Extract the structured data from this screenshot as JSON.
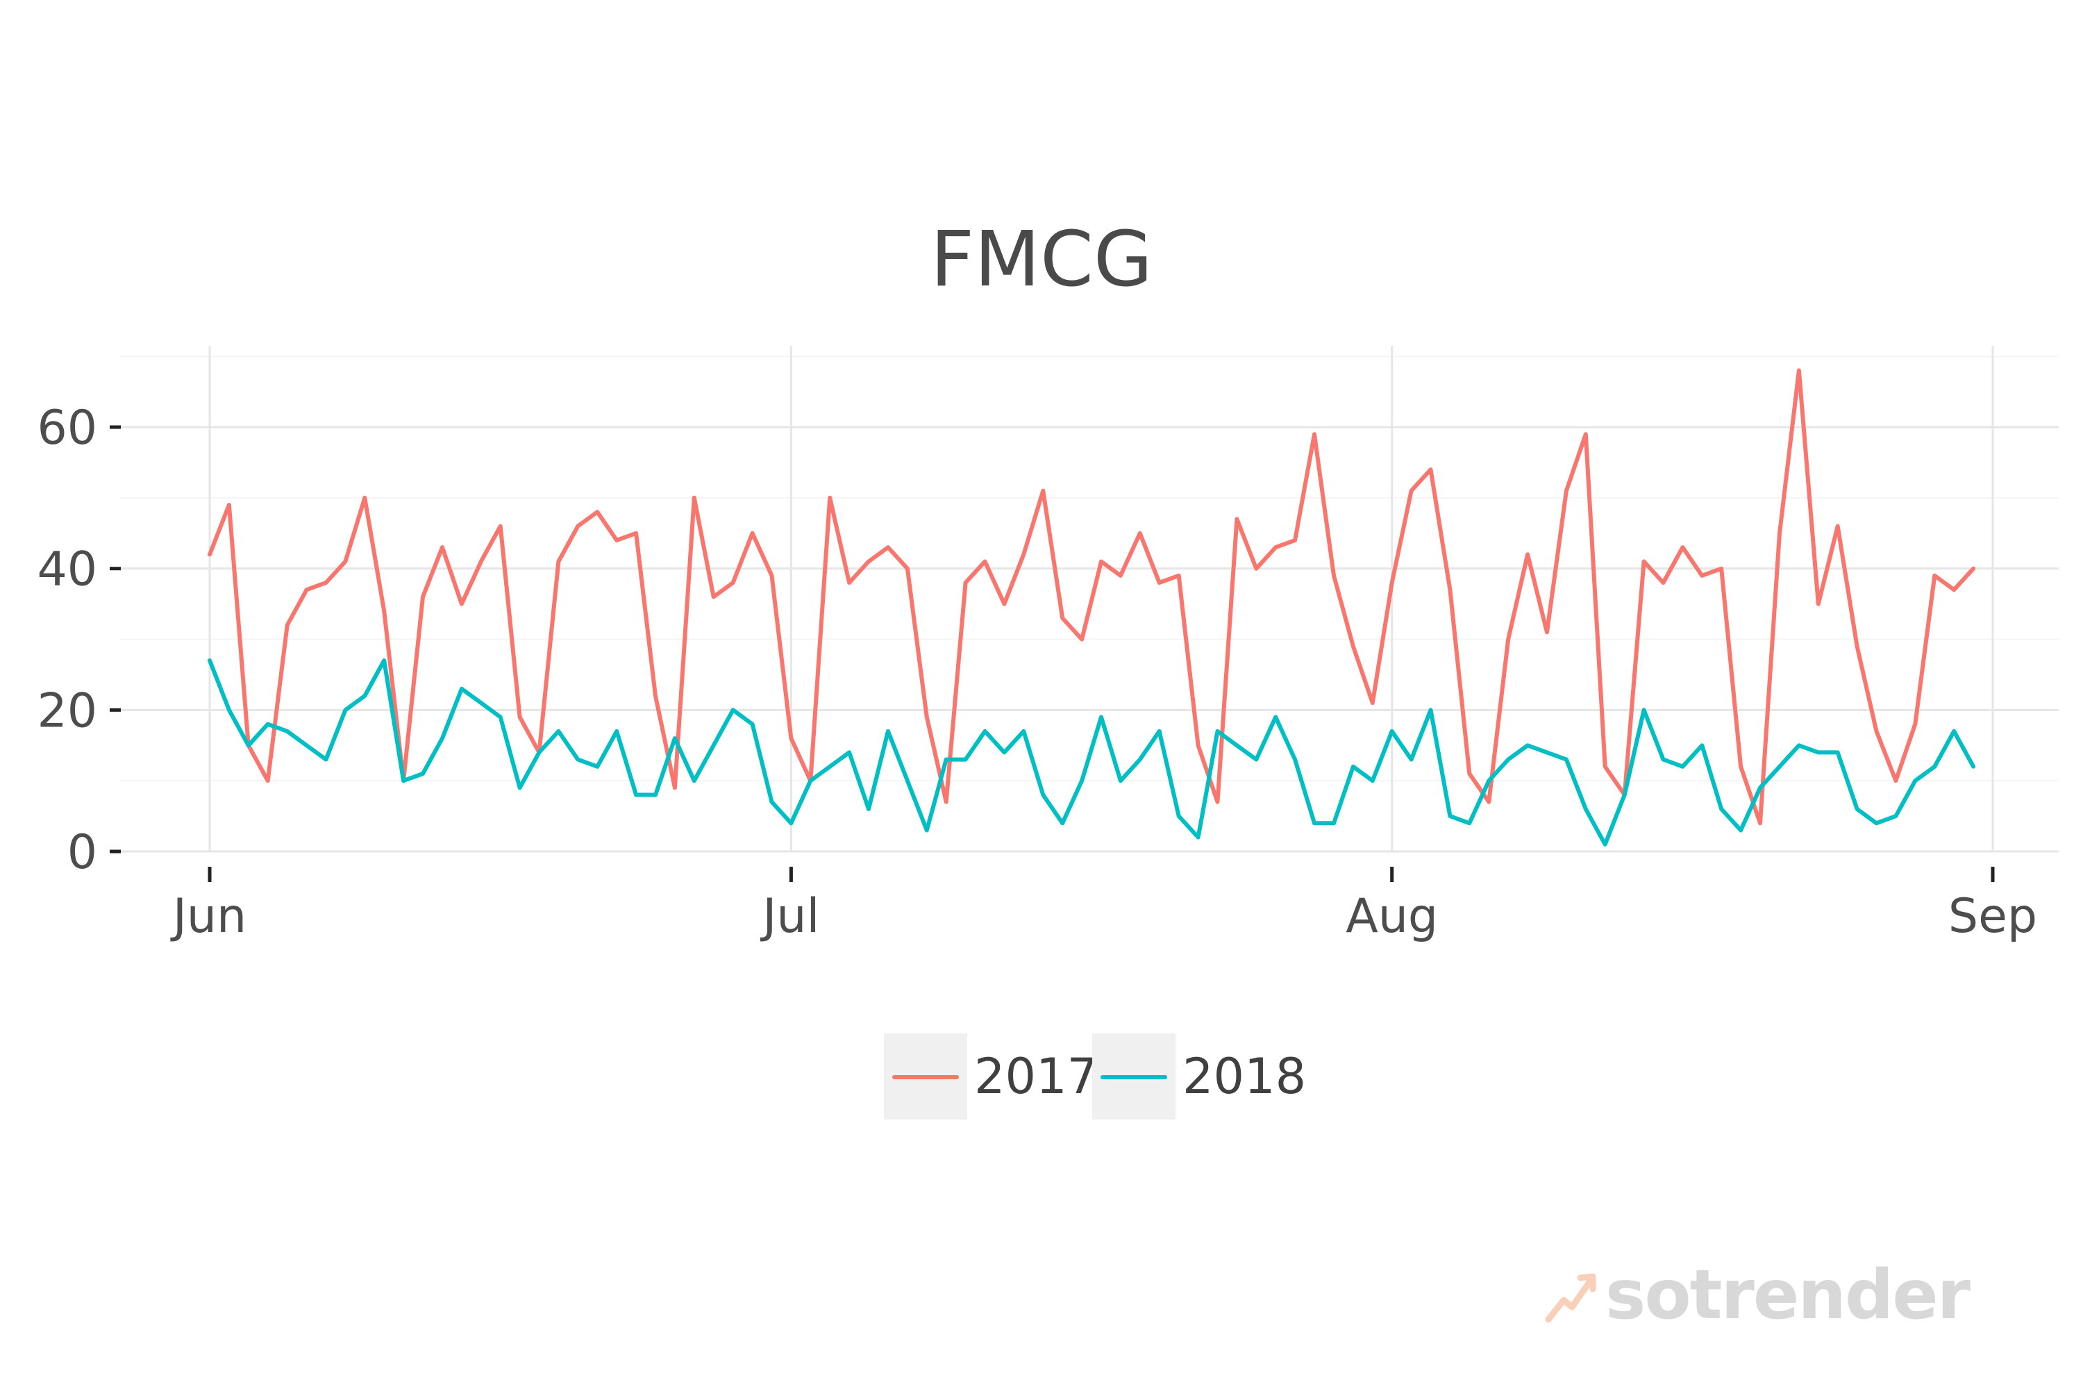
{
  "chart_data": {
    "type": "line",
    "title": "FMCG",
    "xlabel": "",
    "ylabel": "",
    "xlim": [
      0,
      91
    ],
    "ylim": [
      0,
      71
    ],
    "grid": true,
    "legend_position": "bottom",
    "y_ticks": [
      0,
      20,
      40,
      60
    ],
    "y_tick_labels": [
      "0",
      "20",
      "40",
      "60"
    ],
    "x_ticks": [
      0,
      30,
      61,
      92
    ],
    "x_tick_labels": [
      "Jun",
      "Jul",
      "Aug",
      "Sep"
    ],
    "series": [
      {
        "name": "2017",
        "color": "#f8766d",
        "x": [
          0,
          1,
          2,
          3,
          4,
          5,
          6,
          7,
          8,
          9,
          10,
          11,
          12,
          13,
          14,
          15,
          16,
          17,
          18,
          19,
          20,
          21,
          22,
          23,
          24,
          25,
          26,
          27,
          28,
          29,
          30,
          31,
          32,
          33,
          34,
          35,
          36,
          37,
          38,
          39,
          40,
          41,
          42,
          43,
          44,
          45,
          46,
          47,
          48,
          49,
          50,
          51,
          52,
          53,
          54,
          55,
          56,
          57,
          58,
          59,
          60,
          61,
          62,
          63,
          64,
          65,
          66,
          67,
          68,
          69,
          70,
          71,
          72,
          73,
          74,
          75,
          76,
          77,
          78,
          79,
          80,
          81,
          82,
          83,
          84,
          85,
          86,
          87,
          88,
          89,
          90,
          91
        ],
        "values": [
          42,
          49,
          15,
          10,
          32,
          37,
          38,
          41,
          50,
          34,
          10,
          36,
          43,
          35,
          41,
          46,
          19,
          14,
          41,
          46,
          48,
          44,
          45,
          22,
          9,
          50,
          36,
          38,
          45,
          39,
          16,
          10,
          50,
          38,
          41,
          43,
          40,
          19,
          7,
          38,
          41,
          35,
          42,
          51,
          33,
          30,
          41,
          39,
          45,
          38,
          39,
          15,
          7,
          47,
          40,
          43,
          44,
          59,
          39,
          29,
          21,
          38,
          51,
          54,
          37,
          11,
          7,
          30,
          42,
          31,
          51,
          59,
          12,
          8,
          41,
          38,
          43,
          39,
          40,
          12,
          4,
          45,
          68,
          35,
          46,
          29,
          17,
          10,
          18,
          39,
          37,
          40
        ]
      },
      {
        "name": "2018",
        "color": "#00bfc4",
        "x": [
          0,
          1,
          2,
          3,
          4,
          5,
          6,
          7,
          8,
          9,
          10,
          11,
          12,
          13,
          14,
          15,
          16,
          17,
          18,
          19,
          20,
          21,
          22,
          23,
          24,
          25,
          26,
          27,
          28,
          29,
          30,
          31,
          32,
          33,
          34,
          35,
          36,
          37,
          38,
          39,
          40,
          41,
          42,
          43,
          44,
          45,
          46,
          47,
          48,
          49,
          50,
          51,
          52,
          53,
          54,
          55,
          56,
          57,
          58,
          59,
          60,
          61,
          62,
          63,
          64,
          65,
          66,
          67,
          68,
          69,
          70,
          71,
          72,
          73,
          74,
          75,
          76,
          77,
          78,
          79,
          80,
          81,
          82,
          83,
          84,
          85,
          86,
          87,
          88,
          89,
          90,
          91
        ],
        "values": [
          27,
          20,
          15,
          18,
          17,
          15,
          13,
          20,
          22,
          27,
          10,
          11,
          16,
          23,
          21,
          19,
          9,
          14,
          17,
          13,
          12,
          17,
          8,
          8,
          16,
          10,
          15,
          20,
          18,
          7,
          4,
          10,
          12,
          14,
          6,
          17,
          10,
          3,
          13,
          13,
          17,
          14,
          17,
          8,
          4,
          10,
          19,
          10,
          13,
          17,
          5,
          2,
          17,
          15,
          13,
          19,
          13,
          4,
          4,
          12,
          10,
          17,
          13,
          20,
          5,
          4,
          10,
          13,
          15,
          14,
          13,
          6,
          1,
          8,
          20,
          13,
          12,
          15,
          6,
          3,
          9,
          12,
          15,
          14,
          14,
          6,
          4,
          5,
          10,
          12,
          17,
          12
        ]
      }
    ]
  },
  "watermark": {
    "text": "sotrender",
    "icon": "trend-arrow-icon",
    "color": "#d8d8d8"
  }
}
